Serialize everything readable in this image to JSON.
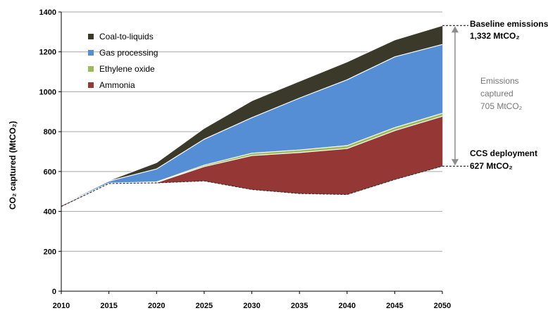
{
  "chart_data": {
    "type": "area",
    "x": [
      2010,
      2015,
      2020,
      2025,
      2030,
      2035,
      2040,
      2045,
      2050
    ],
    "xlim": [
      2010,
      2050
    ],
    "ylim": [
      0,
      1400
    ],
    "yticks": [
      0,
      200,
      400,
      600,
      800,
      1000,
      1200,
      1400
    ],
    "ylabel": "CO₂ captured (MtCO₂)",
    "xlabel": "",
    "title": "",
    "grid": true,
    "legend_position": "top-left",
    "ccs_deployment_line": [
      425,
      540,
      543,
      553,
      510,
      490,
      485,
      560,
      627
    ],
    "series": [
      {
        "name": "Ammonia",
        "color": "#953735",
        "values": [
          5,
          0,
          2,
          72,
          170,
          205,
          230,
          245,
          250
        ]
      },
      {
        "name": "Ethylene oxide",
        "color": "#9bbb59",
        "values": [
          1,
          2,
          3,
          7,
          12,
          13,
          15,
          15,
          15
        ]
      },
      {
        "name": "Gas processing",
        "color": "#558ed5",
        "values": [
          3,
          10,
          65,
          130,
          178,
          260,
          330,
          355,
          345
        ]
      },
      {
        "name": "Coal-to-liquids",
        "color": "#3b3a2a",
        "values": [
          1,
          3,
          32,
          55,
          85,
          85,
          90,
          85,
          95
        ]
      }
    ],
    "legend_order": [
      "Coal-to-liquids",
      "Gas processing",
      "Ethylene oxide",
      "Ammonia"
    ],
    "baseline": {
      "line1": "Baseline emissions",
      "line2": "1,332 MtCO₂",
      "value": 1332
    },
    "ccs": {
      "line1": "CCS deployment",
      "line2": "627 MtCO₂",
      "value": 627
    },
    "captured": {
      "line1": "Emissions",
      "line2": "captured",
      "line3": "705 MtCO₂"
    }
  }
}
